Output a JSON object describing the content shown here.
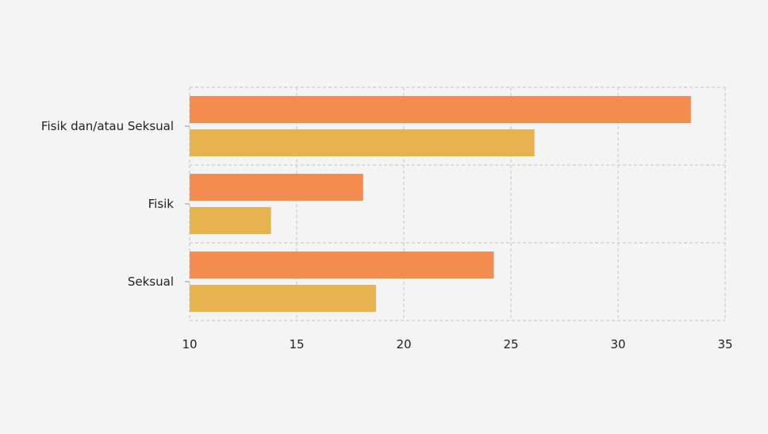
{
  "chart_data": {
    "type": "bar",
    "orientation": "horizontal",
    "title": "",
    "xlabel": "",
    "ylabel": "",
    "categories": [
      "Fisik dan/atau Seksual",
      "Fisik",
      "Seksual"
    ],
    "series": [
      {
        "values": [
          33.4,
          18.1,
          24.2
        ],
        "color": "#f48b4f"
      },
      {
        "values": [
          26.1,
          13.8,
          18.7
        ],
        "color": "#e6b34f"
      }
    ],
    "xlim": [
      10,
      35
    ],
    "xticks": [
      10,
      15,
      20,
      25,
      30,
      35
    ],
    "grid": true,
    "grid_style": "dashed",
    "legend": "none",
    "background": "#f4f4f4"
  }
}
